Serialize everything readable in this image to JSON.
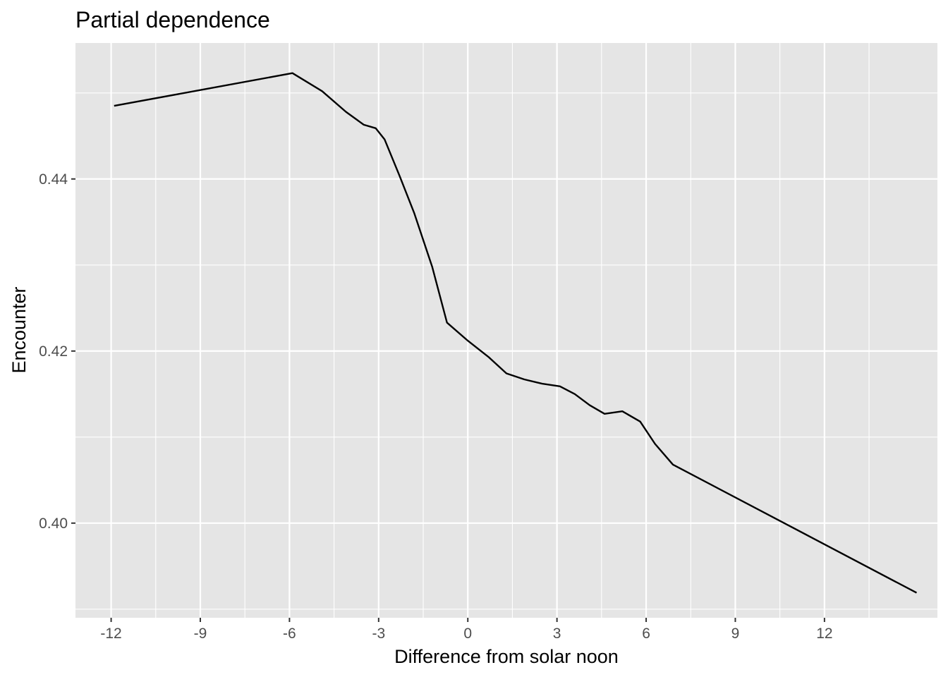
{
  "chart_data": {
    "type": "line",
    "title": "Partial dependence",
    "xlabel": "Difference from solar noon",
    "ylabel": "Encounter",
    "xlim": [
      -13.2,
      15.8
    ],
    "ylim": [
      0.389,
      0.4558
    ],
    "x_ticks": [
      -12,
      -9,
      -6,
      -3,
      0,
      3,
      6,
      9,
      12
    ],
    "x_tick_labels": [
      "-12",
      "-9",
      "-6",
      "-3",
      "0",
      "3",
      "6",
      "9",
      "12"
    ],
    "y_ticks": [
      0.4,
      0.42,
      0.44
    ],
    "y_tick_labels": [
      "0.40",
      "0.42",
      "0.44"
    ],
    "grid": true,
    "background": "#e5e5e5",
    "grid_color": "#ffffff",
    "line_color": "#000000",
    "series": [
      {
        "x": [
          -11.9,
          -5.9,
          -4.9,
          -4.1,
          -3.5,
          -3.1,
          -2.8,
          -2.3,
          -1.8,
          -1.2,
          -0.7,
          0.0,
          0.7,
          1.3,
          1.9,
          2.5,
          3.1,
          3.6,
          4.1,
          4.6,
          5.2,
          5.8,
          6.3,
          6.9,
          15.1
        ],
        "y": [
          0.4485,
          0.4523,
          0.4502,
          0.4478,
          0.4463,
          0.4459,
          0.4446,
          0.4404,
          0.436,
          0.4298,
          0.4233,
          0.4212,
          0.4193,
          0.4174,
          0.4167,
          0.4162,
          0.4159,
          0.415,
          0.4137,
          0.4127,
          0.413,
          0.4118,
          0.4092,
          0.4068,
          0.3919
        ]
      }
    ]
  }
}
